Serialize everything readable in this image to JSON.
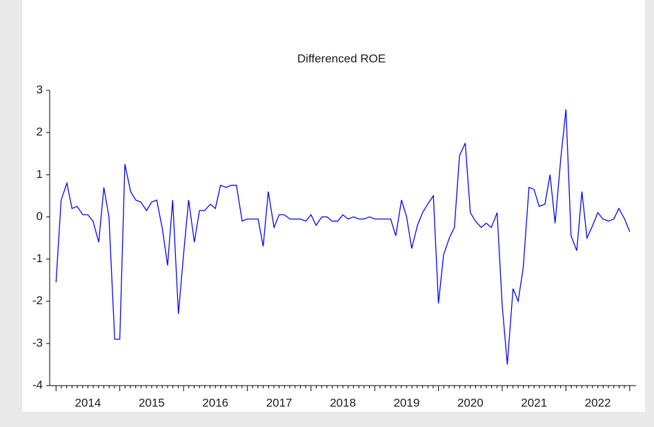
{
  "chart_data": {
    "type": "line",
    "title": "Differenced ROE",
    "color": "#0000ff",
    "x": [
      2014.0,
      2014.08,
      2014.17,
      2014.25,
      2014.33,
      2014.42,
      2014.5,
      2014.58,
      2014.67,
      2014.75,
      2014.83,
      2014.92,
      2015.0,
      2015.08,
      2015.17,
      2015.25,
      2015.33,
      2015.42,
      2015.5,
      2015.58,
      2015.67,
      2015.75,
      2015.83,
      2015.92,
      2016.0,
      2016.08,
      2016.17,
      2016.25,
      2016.33,
      2016.42,
      2016.5,
      2016.58,
      2016.67,
      2016.75,
      2016.83,
      2016.92,
      2017.0,
      2017.08,
      2017.17,
      2017.25,
      2017.33,
      2017.42,
      2017.5,
      2017.58,
      2017.67,
      2017.75,
      2017.83,
      2017.92,
      2018.0,
      2018.08,
      2018.17,
      2018.25,
      2018.33,
      2018.42,
      2018.5,
      2018.58,
      2018.67,
      2018.75,
      2018.83,
      2018.92,
      2019.0,
      2019.08,
      2019.17,
      2019.25,
      2019.33,
      2019.42,
      2019.5,
      2019.58,
      2019.67,
      2019.75,
      2019.83,
      2019.92,
      2020.0,
      2020.08,
      2020.17,
      2020.25,
      2020.33,
      2020.42,
      2020.5,
      2020.58,
      2020.67,
      2020.75,
      2020.83,
      2020.92,
      2021.0,
      2021.08,
      2021.17,
      2021.25,
      2021.33,
      2021.42,
      2021.5,
      2021.58,
      2021.67,
      2021.75,
      2021.83,
      2021.92,
      2022.0,
      2022.08,
      2022.17,
      2022.25,
      2022.33,
      2022.42,
      2022.5,
      2022.58,
      2022.67,
      2022.75,
      2022.83,
      2022.92,
      2023.0
    ],
    "values": [
      -1.55,
      0.4,
      0.8,
      0.2,
      0.25,
      0.05,
      0.05,
      -0.1,
      -0.6,
      0.7,
      0.0,
      -2.9,
      -2.9,
      1.25,
      0.6,
      0.4,
      0.35,
      0.15,
      0.35,
      0.4,
      -0.3,
      -1.15,
      0.4,
      -2.3,
      -0.9,
      0.4,
      -0.6,
      0.15,
      0.15,
      0.3,
      0.2,
      0.75,
      0.7,
      0.75,
      0.75,
      -0.1,
      -0.05,
      -0.05,
      -0.05,
      -0.7,
      0.6,
      -0.25,
      0.05,
      0.05,
      -0.05,
      -0.05,
      -0.05,
      -0.1,
      0.05,
      -0.2,
      0.0,
      0.0,
      -0.1,
      -0.1,
      0.05,
      -0.05,
      0.0,
      -0.05,
      -0.05,
      0.0,
      -0.05,
      -0.05,
      -0.05,
      -0.05,
      -0.45,
      0.4,
      0.0,
      -0.75,
      -0.2,
      0.1,
      0.3,
      0.5,
      -2.05,
      -0.9,
      -0.5,
      -0.25,
      1.45,
      1.75,
      0.1,
      -0.1,
      -0.25,
      -0.15,
      -0.25,
      0.1,
      -2.1,
      -3.5,
      -1.7,
      -2.0,
      -1.2,
      0.7,
      0.65,
      0.25,
      0.3,
      1.0,
      -0.15,
      1.4,
      2.55,
      -0.45,
      -0.8,
      0.6,
      -0.5,
      -0.2,
      0.1,
      -0.05,
      -0.1,
      -0.05,
      0.2,
      -0.05,
      -0.35
    ],
    "xlim": [
      2013.9,
      2023.1
    ],
    "xticks": [
      2014,
      2015,
      2016,
      2017,
      2018,
      2019,
      2020,
      2021,
      2022,
      2023
    ],
    "xtick_labels": [
      {
        "value": 2014.5,
        "label": "2014"
      },
      {
        "value": 2015.5,
        "label": "2015"
      },
      {
        "value": 2016.5,
        "label": "2016"
      },
      {
        "value": 2017.5,
        "label": "2017"
      },
      {
        "value": 2018.5,
        "label": "2018"
      },
      {
        "value": 2019.5,
        "label": "2019"
      },
      {
        "value": 2020.5,
        "label": "2020"
      },
      {
        "value": 2021.5,
        "label": "2021"
      },
      {
        "value": 2022.5,
        "label": "2022"
      }
    ],
    "ylim": [
      -4,
      3
    ],
    "yticks": [
      -4,
      -3,
      -2,
      -1,
      0,
      1,
      2,
      3
    ]
  }
}
